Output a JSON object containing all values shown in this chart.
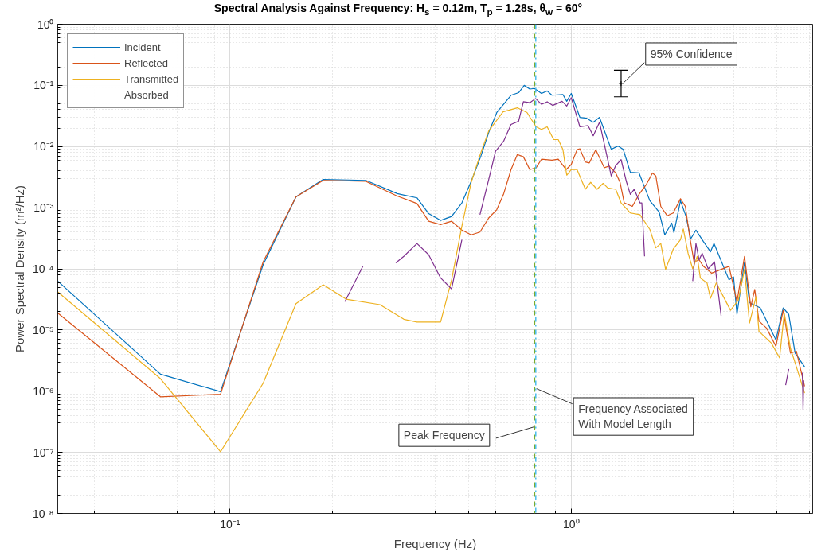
{
  "chart_data": {
    "type": "line",
    "title": "Spectral Analysis Against Frequency: H$_{s}$ = 0.12m, T$_{p}$ = 1.28s, θ$_{w}$ = 60°",
    "xlabel": "Frequency (Hz)",
    "ylabel": "Power Spectral Density (m²/Hz)",
    "log": "xy",
    "grid": true,
    "legend": "top left",
    "line_style": "solid",
    "xlim": [
      0.03125,
      5.1
    ],
    "ylim": [
      1e-08,
      1
    ],
    "xticks": [
      {
        "value": 0.1,
        "label": "10⁻¹"
      },
      {
        "value": 1,
        "label": "10⁰"
      }
    ],
    "yticks": [
      {
        "value": 1e-08,
        "label": "10⁻⁸"
      },
      {
        "value": 1e-07,
        "label": "10⁻⁷"
      },
      {
        "value": 1e-06,
        "label": "10⁻⁶"
      },
      {
        "value": 1e-05,
        "label": "10⁻⁵"
      },
      {
        "value": 0.0001,
        "label": "10⁻⁴"
      },
      {
        "value": 0.001,
        "label": "10⁻³"
      },
      {
        "value": 0.01,
        "label": "10⁻²"
      },
      {
        "value": 0.1,
        "label": "10⁻¹"
      },
      {
        "value": 1,
        "label": "10⁰"
      }
    ],
    "series": [
      {
        "name": "Incident",
        "color": "#0072bd",
        "x": [
          0.03125,
          0.0625,
          0.09375,
          0.125,
          0.156,
          0.1875,
          0.25,
          0.309,
          0.353,
          0.382,
          0.414,
          0.446,
          0.478,
          0.509,
          0.543,
          0.573,
          0.605,
          0.666,
          0.701,
          0.728,
          0.756,
          0.78,
          0.818,
          0.85,
          0.878,
          0.945,
          0.97,
          1.0,
          1.06,
          1.11,
          1.16,
          1.21,
          1.31,
          1.37,
          1.42,
          1.49,
          1.58,
          1.7,
          1.81,
          1.88,
          1.97,
          2.0,
          2.09,
          2.17,
          2.24,
          2.32,
          2.44,
          2.56,
          2.62,
          2.9,
          2.99,
          3.06,
          3.22,
          3.33,
          3.58,
          3.98,
          4.18,
          4.34,
          4.53,
          4.83
        ],
        "values": [
          6.3e-05,
          1.9e-06,
          9.8e-07,
          0.000117,
          0.0015,
          0.0029,
          0.0028,
          0.0017,
          0.00145,
          0.0008,
          0.00062,
          0.00072,
          0.0012,
          0.0027,
          0.0069,
          0.017,
          0.036,
          0.069,
          0.076,
          0.1,
          0.087,
          0.089,
          0.074,
          0.081,
          0.069,
          0.071,
          0.055,
          0.074,
          0.03,
          0.029,
          0.025,
          0.03,
          0.009,
          0.0102,
          0.009,
          0.0038,
          0.0037,
          0.0013,
          0.00085,
          0.00036,
          0.00056,
          0.00039,
          0.0013,
          0.00072,
          0.00031,
          0.00043,
          0.00028,
          0.00019,
          0.00026,
          6.6e-05,
          7.4e-05,
          1.8e-05,
          0.00013,
          2.8e-05,
          2.3e-05,
          6.9e-06,
          2.3e-05,
          1.8e-05,
          4.2e-06,
          2.5e-06
        ]
      },
      {
        "name": "Reflected",
        "color": "#d95319",
        "x": [
          0.03125,
          0.0625,
          0.09375,
          0.125,
          0.156,
          0.1875,
          0.25,
          0.309,
          0.353,
          0.382,
          0.414,
          0.446,
          0.478,
          0.509,
          0.54,
          0.573,
          0.605,
          0.634,
          0.666,
          0.695,
          0.724,
          0.756,
          0.789,
          0.818,
          0.878,
          0.916,
          0.966,
          1.0,
          1.04,
          1.06,
          1.1,
          1.13,
          1.18,
          1.25,
          1.29,
          1.35,
          1.39,
          1.43,
          1.51,
          1.58,
          1.66,
          1.73,
          1.77,
          1.83,
          1.91,
          1.99,
          2.09,
          2.16,
          2.22,
          2.29,
          2.37,
          2.44,
          2.58,
          2.9,
          3.06,
          3.22,
          3.36,
          3.45,
          3.55,
          3.74,
          3.98,
          4.18,
          4.39,
          4.57,
          4.83
        ],
        "values": [
          1.9e-05,
          8.1e-07,
          8.9e-07,
          0.00013,
          0.0015,
          0.0028,
          0.0027,
          0.00155,
          0.00117,
          0.0006,
          0.00053,
          0.0006,
          0.00043,
          0.00036,
          0.0004,
          0.00068,
          0.00093,
          0.0017,
          0.0042,
          0.0074,
          0.0068,
          0.0042,
          0.0045,
          0.0062,
          0.006,
          0.0062,
          0.0042,
          0.0051,
          0.0089,
          0.0092,
          0.0056,
          0.0054,
          0.0089,
          0.0045,
          0.0048,
          0.0037,
          0.0026,
          0.0012,
          0.00105,
          0.00165,
          0.0024,
          0.0037,
          0.0033,
          0.00105,
          0.00074,
          0.00082,
          0.0014,
          0.00105,
          0.00036,
          0.00013,
          0.00014,
          0.00011,
          8.5e-05,
          0.00011,
          2.9e-05,
          0.00016,
          2.4e-05,
          4.6e-05,
          1.4e-05,
          1.07e-05,
          5.4e-06,
          2.1e-05,
          4.2e-06,
          4.5e-06,
          1.2e-06
        ]
      },
      {
        "name": "Transmitted",
        "color": "#edb120",
        "x": [
          0.03125,
          0.0625,
          0.09375,
          0.125,
          0.156,
          0.1875,
          0.21875,
          0.275,
          0.323,
          0.353,
          0.414,
          0.446,
          0.478,
          0.509,
          0.543,
          0.573,
          0.631,
          0.695,
          0.742,
          0.789,
          0.818,
          0.85,
          0.888,
          0.916,
          0.945,
          0.97,
          1.0,
          1.04,
          1.1,
          1.14,
          1.19,
          1.24,
          1.28,
          1.35,
          1.4,
          1.49,
          1.59,
          1.7,
          1.77,
          1.83,
          1.89,
          1.99,
          2.09,
          2.13,
          2.2,
          2.27,
          2.34,
          2.39,
          2.5,
          2.56,
          2.66,
          2.93,
          3.09,
          3.22,
          3.33,
          3.48,
          3.55,
          3.86,
          4.08,
          4.21,
          4.39,
          4.57,
          4.83
        ],
        "values": [
          4.2e-05,
          1.6e-06,
          1.02e-07,
          1.35e-06,
          2.7e-05,
          5.5e-05,
          3.2e-05,
          2.6e-05,
          1.5e-05,
          1.35e-05,
          1.35e-05,
          6.6e-05,
          0.0005,
          0.0026,
          0.0079,
          0.018,
          0.037,
          0.043,
          0.036,
          0.021,
          0.019,
          0.021,
          0.013,
          0.013,
          0.009,
          0.0034,
          0.0042,
          0.0042,
          0.002,
          0.0026,
          0.002,
          0.0025,
          0.0021,
          0.002,
          0.0012,
          0.00082,
          0.00077,
          0.00044,
          0.00022,
          0.00026,
          9.8e-05,
          0.00021,
          0.0003,
          0.00045,
          0.00018,
          0.0001,
          0.00016,
          7.1e-05,
          5.9e-05,
          3.3e-05,
          5.9e-05,
          2.1e-05,
          3.1e-05,
          9.8e-05,
          1.3e-05,
          3.5e-05,
          9.5e-06,
          6.1e-06,
          3.5e-06,
          1.9e-05,
          5e-06,
          2.5e-06,
          9.3e-07
        ]
      },
      {
        "name": "Absorbed",
        "color": "#7e2f8e",
        "x": [
          0.217,
          0.245,
          0.28,
          0.306,
          0.323,
          0.353,
          0.382,
          0.414,
          0.446,
          0.478,
          0.51,
          0.54,
          0.573,
          0.6,
          0.634,
          0.666,
          0.701,
          0.724,
          0.756,
          0.786,
          0.818,
          0.85,
          0.882,
          0.94,
          0.97,
          1.0,
          1.06,
          1.12,
          1.16,
          1.21,
          1.26,
          1.31,
          1.35,
          1.4,
          1.45,
          1.49,
          1.53,
          1.59,
          1.61,
          1.64,
          2.0,
          2.27,
          2.32,
          2.37,
          2.42,
          2.52,
          2.63,
          2.75,
          3.5,
          4.25,
          4.34,
          4.5,
          4.76,
          4.78,
          4.8
        ],
        "values": [
          2.9e-05,
          0.00011,
          null,
          0.000125,
          0.00016,
          0.00026,
          0.00017,
          7.1e-05,
          4.7e-05,
          0.0003,
          null,
          0.00077,
          0.0029,
          0.0084,
          0.0123,
          0.023,
          0.026,
          0.054,
          0.052,
          0.061,
          0.049,
          0.054,
          0.047,
          0.055,
          0.046,
          0.063,
          0.021,
          0.022,
          0.015,
          0.025,
          0.009,
          0.0033,
          0.0049,
          0.0061,
          0.0027,
          0.00165,
          0.002,
          0.0012,
          0.0012,
          0.00016,
          null,
          6.3e-05,
          0.00026,
          0.00014,
          0.00018,
          0.0001,
          0.00013,
          1.7e-05,
          null,
          1.26e-06,
          2.3e-06,
          null,
          2e-06,
          5e-07,
          1.5e-06
        ]
      },
      {
        "type": "scatter",
        "marker": "cross",
        "color": "#000000",
        "x": [
          1.4
        ],
        "values": [
          0.107
        ],
        "errors": [
          [
            0.065,
            0.177
          ]
        ]
      }
    ],
    "ref_lines": [
      {
        "axis": "x",
        "value": 0.781,
        "label": "Peak Frequency",
        "color": "#77ac30",
        "line_style": "dashed"
      },
      {
        "axis": "x",
        "value": 0.787,
        "label": "Frequency Associated\nWith Model Length",
        "color": "#4dbeee",
        "line_style": "dashdot"
      }
    ],
    "annotations": [
      {
        "text": "95% Confidence",
        "x": 1.4,
        "y": 0.107
      }
    ]
  }
}
